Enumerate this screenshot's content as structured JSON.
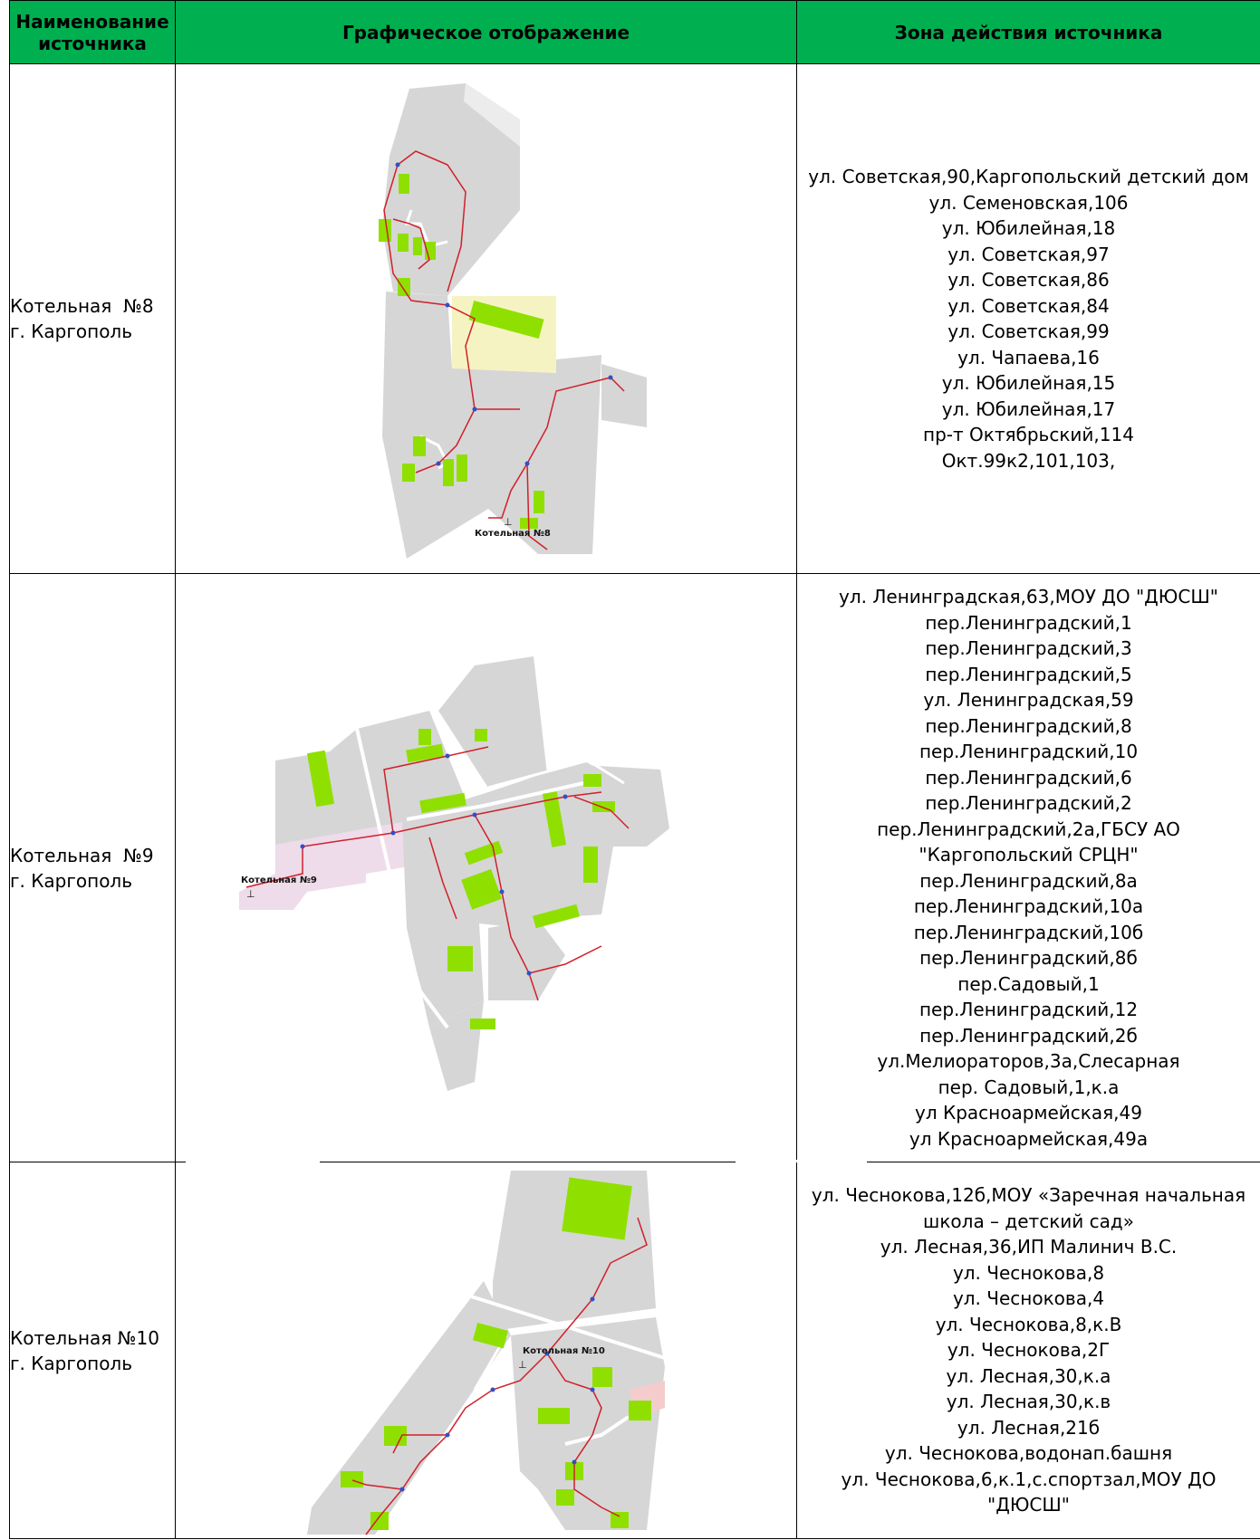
{
  "header": {
    "col1": "Наименование источника",
    "col2": "Графическое отображение",
    "col3": "Зона действия источника"
  },
  "rows": [
    {
      "name_line1": "Котельная  №8",
      "name_line2": "г. Каргополь",
      "map_label": "Котельная №8",
      "zone": [
        "ул. Советская,90,Каргопольский детский дом",
        "ул. Семеновская,106",
        "ул. Юбилейная,18",
        "ул. Советская,97",
        "ул. Советская,86",
        "ул. Советская,84",
        "ул. Советская,99",
        "ул. Чапаева,16",
        "ул. Юбилейная,15",
        "ул. Юбилейная,17",
        "пр-т Октябрьский,114",
        "Окт.99к2,101,103,"
      ]
    },
    {
      "name_line1": "Котельная  №9",
      "name_line2": "г. Каргополь",
      "map_label": "Котельная №9",
      "zone": [
        "ул. Ленинградская,63,МОУ ДО \"ДЮСШ\"",
        "пер.Ленинградский,1",
        "пер.Ленинградский,3",
        "пер.Ленинградский,5",
        "ул. Ленинградская,59",
        "пер.Ленинградский,8",
        "пер.Ленинградский,10",
        "пер.Ленинградский,6",
        "пер.Ленинградский,2",
        "пер.Ленинградский,2а,ГБСУ АО \"Каргопольский СРЦН\"",
        "пер.Ленинградский,8а",
        "пер.Ленинградский,10а",
        "пер.Ленинградский,10б",
        "пер.Ленинградский,8б",
        "пер.Садовый,1",
        "пер.Ленинградский,12",
        "пер.Ленинградский,2б",
        "ул.Мелиораторов,3а,Слесарная",
        "пер. Садовый,1,к.а",
        "ул Красноармейская,49",
        "ул Красноармейская,49а"
      ]
    },
    {
      "name_line1": "Котельная №10",
      "name_line2": "г. Каргополь",
      "map_label": "Котельная №10",
      "zone": [
        "ул. Чеснокова,12б,МОУ «Заречная начальная школа – детский сад»",
        "ул. Лесная,36,ИП Малинич В.С.",
        "ул. Чеснокова,8",
        "ул. Чеснокова,4",
        "ул. Чеснокова,8,к.В",
        "ул. Чеснокова,2Г",
        "ул. Лесная,30,к.а",
        "ул. Лесная,30,к.в",
        "ул. Лесная,21б",
        "ул. Чеснокова,водонап.башня",
        "ул. Чеснокова,6,к.1,с.спортзал,МОУ ДО \"ДЮСШ\""
      ]
    }
  ],
  "colors": {
    "header_bg": "#00b050",
    "lot": "#d6d6d6",
    "building": "#8fe000",
    "pipe": "#d0202a",
    "node": "#3050c8",
    "yellow_zone": "#f6f3c2",
    "pink_zone": "#eedcea"
  }
}
